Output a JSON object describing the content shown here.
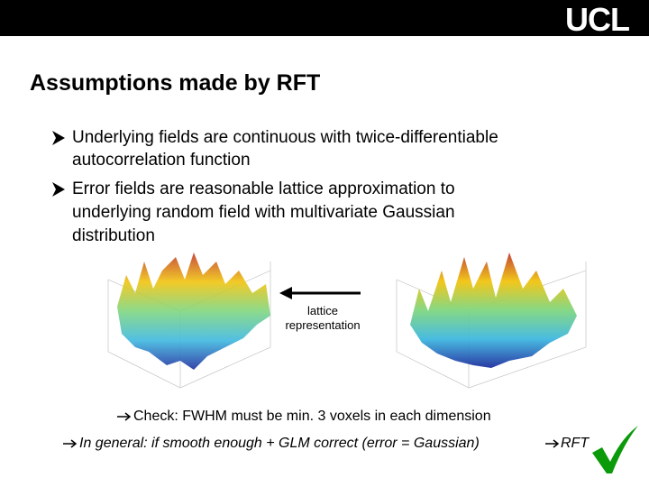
{
  "header": {
    "logo": "UCL"
  },
  "title": "Assumptions made by RFT",
  "bullets": [
    {
      "lines": [
        "Underlying fields are continuous with twice-differentiable",
        "autocorrelation function"
      ]
    },
    {
      "lines": [
        "Error fields are reasonable lattice approximation to",
        "underlying random field with multivariate Gaussian",
        "distribution"
      ]
    }
  ],
  "figure": {
    "arrow_label": [
      "lattice",
      "representation"
    ]
  },
  "check": "Check: FWHM must be min. 3 voxels in each dimension",
  "general": {
    "text": "In general: if smooth enough + GLM correct (error = Gaussian)",
    "result": "RFT"
  }
}
